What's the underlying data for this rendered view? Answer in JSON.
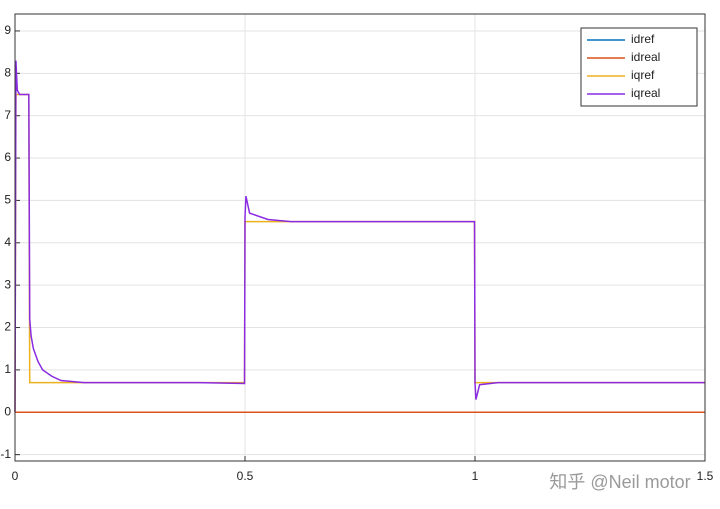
{
  "chart_data": {
    "type": "line",
    "x": [
      0,
      0.002,
      0.005,
      0.01,
      0.02,
      0.03,
      0.032,
      0.035,
      0.04,
      0.05,
      0.06,
      0.08,
      0.1,
      0.15,
      0.2,
      0.3,
      0.4,
      0.499,
      0.5,
      0.502,
      0.51,
      0.55,
      0.6,
      0.7,
      0.8,
      0.9,
      0.999,
      1.0,
      1.002,
      1.01,
      1.05,
      1.1,
      1.2,
      1.3,
      1.4,
      1.5
    ],
    "series": [
      {
        "name": "idref",
        "color": "#0072bd",
        "values": [
          0,
          0,
          0,
          0,
          0,
          0,
          0,
          0,
          0,
          0,
          0,
          0,
          0,
          0,
          0,
          0,
          0,
          0,
          0,
          0,
          0,
          0,
          0,
          0,
          0,
          0,
          0,
          0,
          0,
          0,
          0,
          0,
          0,
          0,
          0,
          0
        ]
      },
      {
        "name": "idreal",
        "color": "#d95319",
        "values": [
          0,
          0,
          0,
          0,
          0,
          0,
          0,
          0,
          0,
          0,
          0,
          0,
          0,
          0,
          0,
          0,
          0,
          0,
          0,
          0,
          0,
          0,
          0,
          0,
          0,
          0,
          0,
          0,
          0,
          0,
          0,
          0,
          0,
          0,
          0,
          0
        ]
      },
      {
        "name": "iqref",
        "color": "#edb120",
        "values": [
          0,
          7.5,
          7.5,
          7.5,
          7.5,
          7.5,
          0.7,
          0.7,
          0.7,
          0.7,
          0.7,
          0.7,
          0.7,
          0.7,
          0.7,
          0.7,
          0.7,
          0.7,
          4.5,
          4.5,
          4.5,
          4.5,
          4.5,
          4.5,
          4.5,
          4.5,
          4.5,
          0.7,
          0.7,
          0.7,
          0.7,
          0.7,
          0.7,
          0.7,
          0.7,
          0.7
        ]
      },
      {
        "name": "iqreal",
        "color": "#8a2be2",
        "values": [
          0,
          8.3,
          7.6,
          7.5,
          7.5,
          7.5,
          2.2,
          1.8,
          1.5,
          1.2,
          1.0,
          0.85,
          0.75,
          0.7,
          0.7,
          0.7,
          0.7,
          0.68,
          4.6,
          5.1,
          4.7,
          4.55,
          4.5,
          4.5,
          4.5,
          4.5,
          4.5,
          0.7,
          0.3,
          0.65,
          0.7,
          0.7,
          0.7,
          0.7,
          0.7,
          0.7
        ]
      }
    ],
    "xlim": [
      0,
      1.5
    ],
    "xticks": [
      0,
      0.5,
      1,
      1.5
    ],
    "ylim": [
      -1.15,
      9.4
    ],
    "yticks": [
      -1,
      0,
      1,
      2,
      3,
      4,
      5,
      6,
      7,
      8,
      9
    ],
    "grid": true,
    "legend": "top-right",
    "watermark": "知乎 @Neil motor"
  }
}
